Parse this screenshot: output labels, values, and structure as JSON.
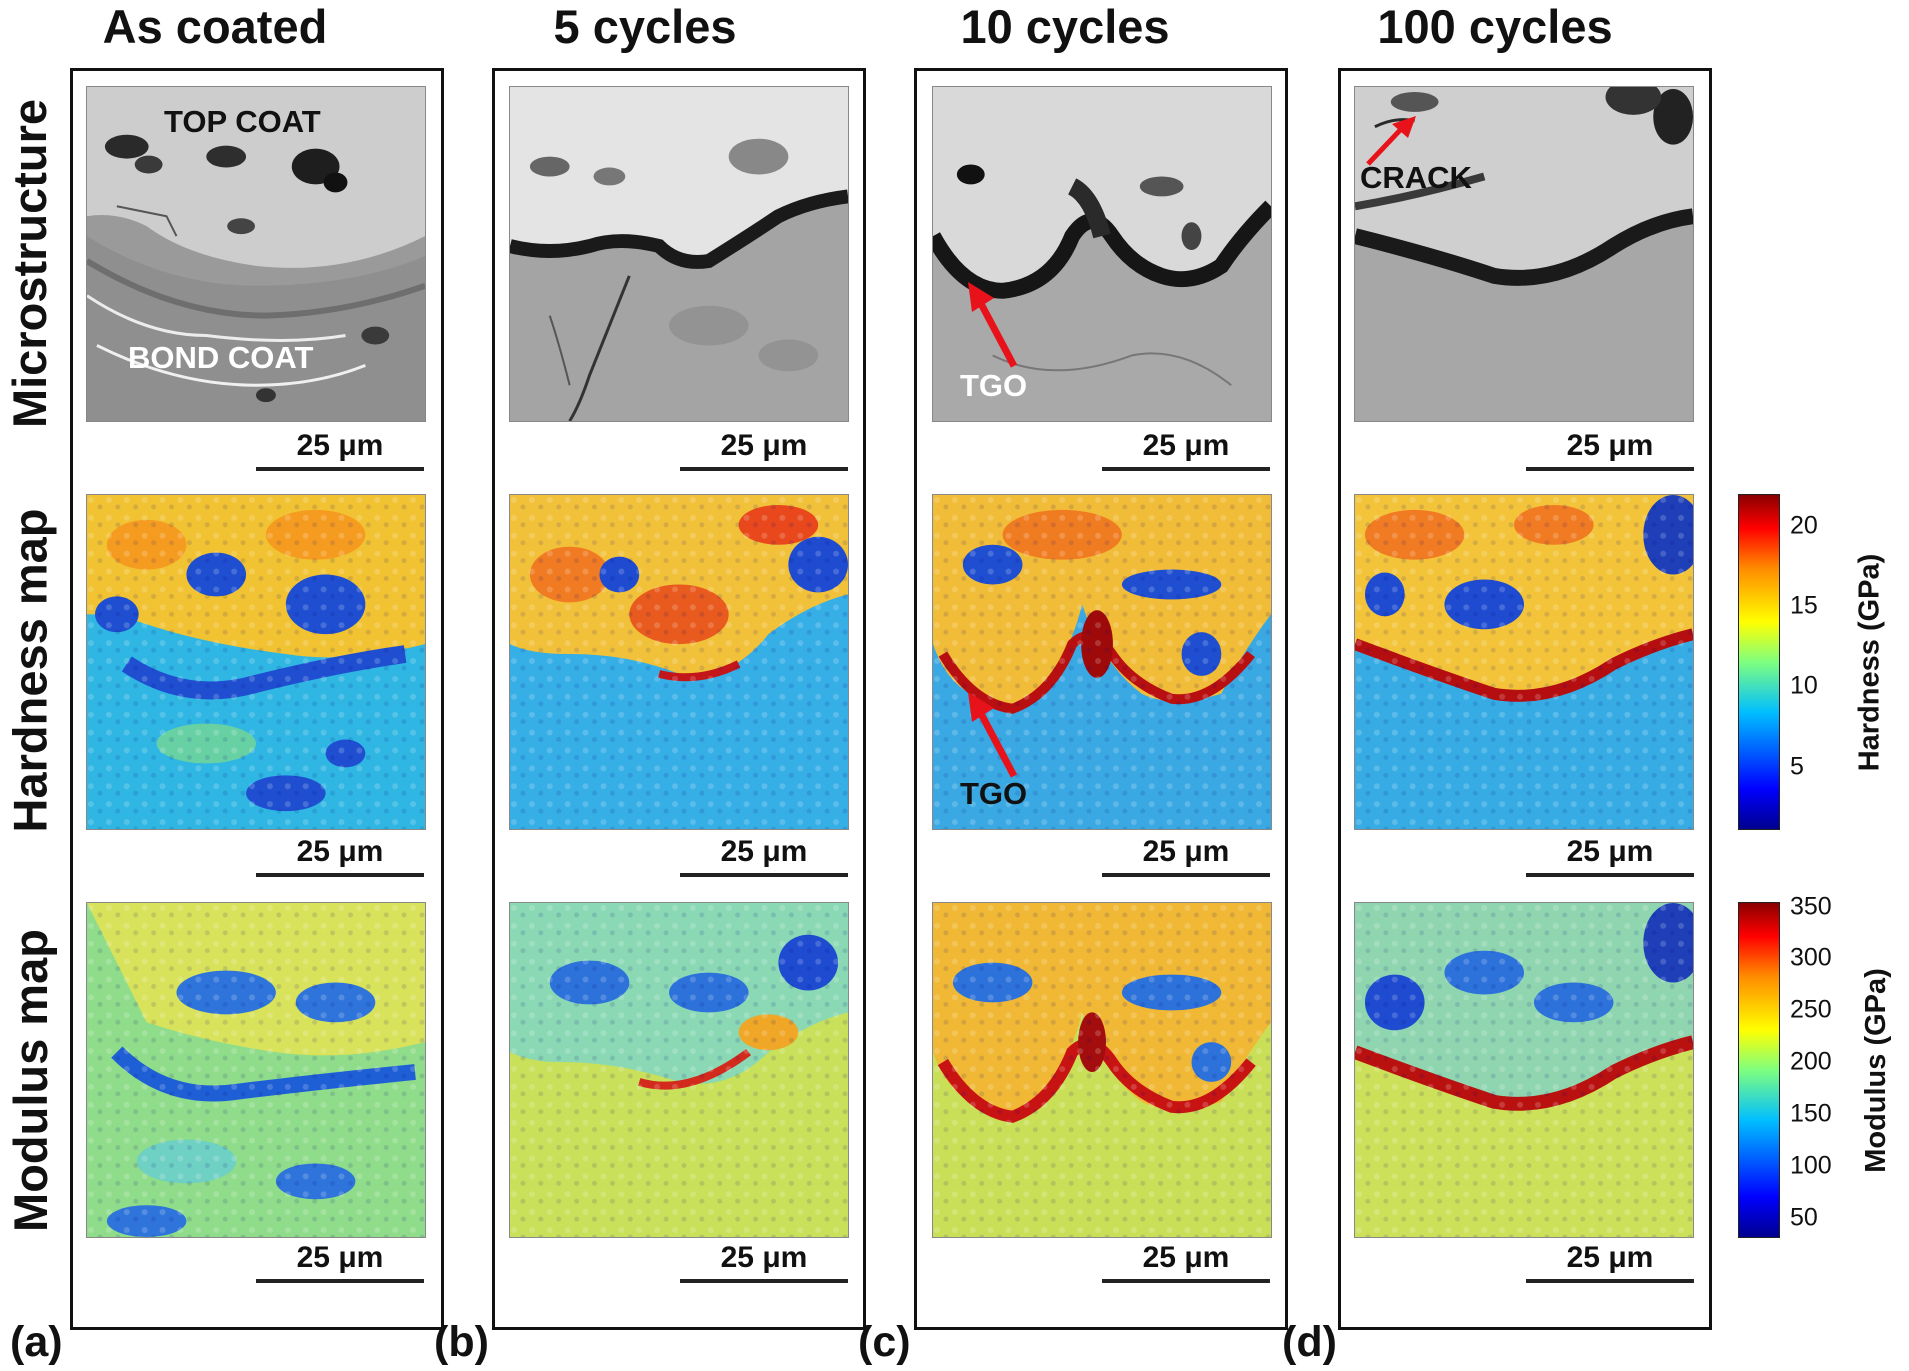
{
  "columns": [
    {
      "title": "As coated",
      "letter": "(a)"
    },
    {
      "title": "5 cycles",
      "letter": "(b)"
    },
    {
      "title": "10 cycles",
      "letter": "(c)"
    },
    {
      "title": "100 cycles",
      "letter": "(d)"
    }
  ],
  "rows": [
    "Microstructure",
    "Hardness map",
    "Modulus map"
  ],
  "scale_bar": "25 μm",
  "annotations": {
    "top_coat": "TOP COAT",
    "bond_coat": "BOND COAT",
    "tgo": "TGO",
    "crack": "CRACK"
  },
  "colorbars": {
    "hardness": {
      "label": "Hardness (GPa)",
      "ticks": [
        "20",
        "15",
        "10",
        "5"
      ],
      "range": [
        1.5,
        22
      ]
    },
    "modulus": {
      "label": "Modulus (GPa)",
      "ticks": [
        "350",
        "300",
        "250",
        "200",
        "150",
        "100",
        "50"
      ],
      "range": [
        30,
        355
      ]
    }
  },
  "colormap": "jet"
}
